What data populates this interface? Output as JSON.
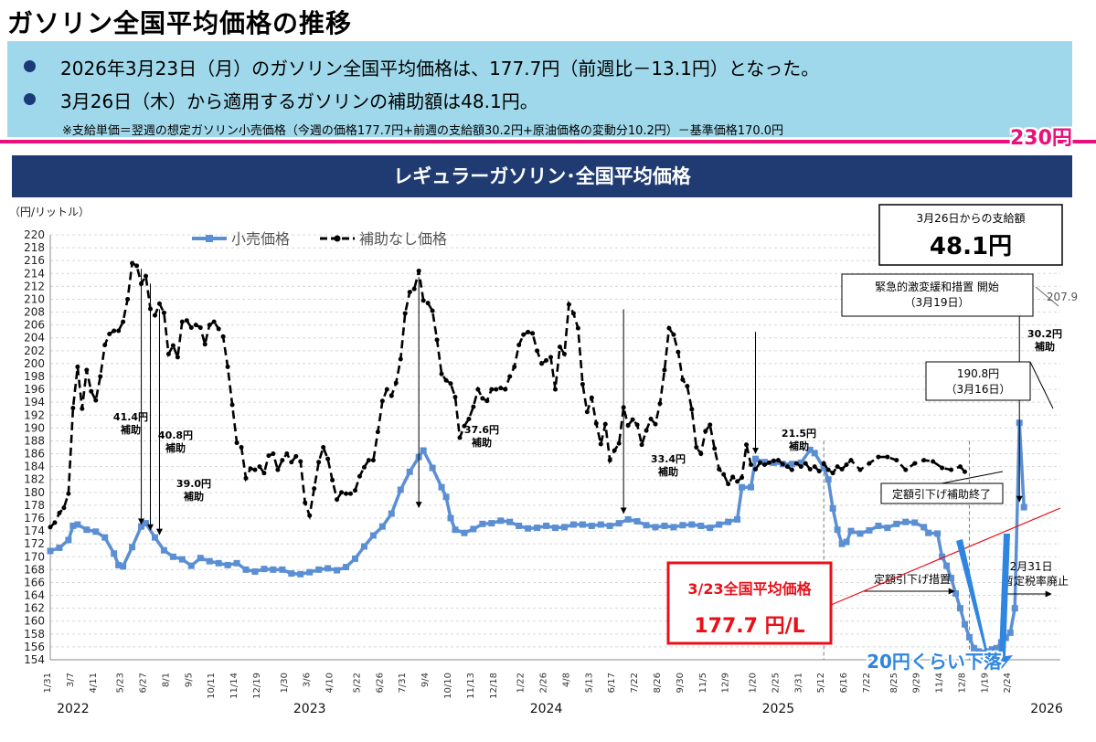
{
  "page": {
    "title": "ガソリン全国平均価格の推移",
    "bullets": [
      "2026年3月23日（月）のガソリン全国平均価格は、177.7円（前週比－13.1円）となった。",
      "3月26日（木）から適用するガソリンの補助額は48.1円。"
    ],
    "note": "※支給単価＝翌週の想定ガソリン小売価格（今週の価格177.7円+前週の支給額30.2円+原油価格の変動分10.2円）－基準価格170.0円",
    "line_label": "230円",
    "chart_header": "レギュラーガソリン･全国平均価格"
  },
  "colors": {
    "retail": "#5b8fd3",
    "nosubsidy": "#000000",
    "accent_red": "#e8101a",
    "pink": "#e8107a",
    "header_bg": "#1f3b72",
    "box_bg": "#9fd8ea",
    "bullet": "#1a3a7a"
  },
  "chart_data": {
    "type": "line",
    "ylabel": "（円/リットル）",
    "ylim": [
      154,
      220
    ],
    "yticks": [
      154,
      156,
      158,
      160,
      162,
      164,
      166,
      168,
      170,
      172,
      174,
      176,
      178,
      180,
      182,
      184,
      186,
      188,
      190,
      192,
      194,
      196,
      198,
      200,
      202,
      204,
      206,
      208,
      210,
      212,
      214,
      216,
      218,
      220
    ],
    "xlim": [
      0,
      222
    ],
    "x_tick_labels": [
      {
        "w": 0,
        "t": "1/31"
      },
      {
        "w": 5,
        "t": "3/7"
      },
      {
        "w": 10,
        "t": "4/11"
      },
      {
        "w": 16,
        "t": "5/23"
      },
      {
        "w": 21,
        "t": "6/27"
      },
      {
        "w": 26,
        "t": "8/1"
      },
      {
        "w": 31,
        "t": "9/5"
      },
      {
        "w": 36,
        "t": "10/11"
      },
      {
        "w": 41,
        "t": "11/14"
      },
      {
        "w": 46,
        "t": "12/19"
      },
      {
        "w": 52,
        "t": "1/30"
      },
      {
        "w": 57,
        "t": "3/6"
      },
      {
        "w": 62,
        "t": "4/10"
      },
      {
        "w": 68,
        "t": "5/22"
      },
      {
        "w": 73,
        "t": "6/26"
      },
      {
        "w": 78,
        "t": "7/31"
      },
      {
        "w": 83,
        "t": "9/4"
      },
      {
        "w": 88,
        "t": "10/10"
      },
      {
        "w": 93,
        "t": "11/13"
      },
      {
        "w": 98,
        "t": "12/18"
      },
      {
        "w": 104,
        "t": "1/22"
      },
      {
        "w": 109,
        "t": "2/26"
      },
      {
        "w": 114,
        "t": "4/8"
      },
      {
        "w": 119,
        "t": "5/13"
      },
      {
        "w": 124,
        "t": "6/17"
      },
      {
        "w": 129,
        "t": "7/22"
      },
      {
        "w": 134,
        "t": "8/26"
      },
      {
        "w": 139,
        "t": "9/30"
      },
      {
        "w": 144,
        "t": "11/5"
      },
      {
        "w": 149,
        "t": "12/9"
      },
      {
        "w": 155,
        "t": "1/20"
      },
      {
        "w": 160,
        "t": "2/25"
      },
      {
        "w": 165,
        "t": "3/31"
      },
      {
        "w": 170,
        "t": "5/12"
      },
      {
        "w": 175,
        "t": "6/16"
      },
      {
        "w": 180,
        "t": "7/22"
      },
      {
        "w": 186,
        "t": "8/25"
      },
      {
        "w": 191,
        "t": "9/29"
      },
      {
        "w": 196,
        "t": "11/4"
      },
      {
        "w": 201,
        "t": "12/8"
      },
      {
        "w": 206,
        "t": "1/19"
      },
      {
        "w": 211,
        "t": "2/24"
      }
    ],
    "year_labels": [
      {
        "w": 5,
        "t": "2022"
      },
      {
        "w": 57,
        "t": "2023"
      },
      {
        "w": 109,
        "t": "2024"
      },
      {
        "w": 160,
        "t": "2025"
      },
      {
        "w": 219,
        "t": "2026"
      }
    ],
    "legend": [
      {
        "key": "retail",
        "label": "小売価格"
      },
      {
        "key": "nosubsidy",
        "label": "補助なし価格"
      }
    ],
    "series_retail": [
      [
        0,
        170.9
      ],
      [
        2,
        171.4
      ],
      [
        4,
        172.6
      ],
      [
        5,
        174.8
      ],
      [
        6,
        175.0
      ],
      [
        8,
        174.2
      ],
      [
        10,
        173.9
      ],
      [
        12,
        173.0
      ],
      [
        14,
        170.5
      ],
      [
        15,
        168.7
      ],
      [
        16,
        168.5
      ],
      [
        18,
        171.5
      ],
      [
        20,
        174.7
      ],
      [
        21,
        175.2
      ],
      [
        23,
        173.0
      ],
      [
        25,
        171.0
      ],
      [
        27,
        170.0
      ],
      [
        29,
        169.6
      ],
      [
        31,
        168.6
      ],
      [
        33,
        169.8
      ],
      [
        35,
        169.3
      ],
      [
        37,
        169.0
      ],
      [
        39,
        168.7
      ],
      [
        41,
        169.0
      ],
      [
        43,
        168.0
      ],
      [
        45,
        167.7
      ],
      [
        47,
        168.1
      ],
      [
        49,
        168.0
      ],
      [
        51,
        168.0
      ],
      [
        53,
        167.4
      ],
      [
        55,
        167.3
      ],
      [
        57,
        167.6
      ],
      [
        59,
        168.0
      ],
      [
        61,
        168.2
      ],
      [
        63,
        167.9
      ],
      [
        65,
        168.4
      ],
      [
        67,
        169.7
      ],
      [
        69,
        171.6
      ],
      [
        71,
        173.3
      ],
      [
        73,
        174.7
      ],
      [
        75,
        176.7
      ],
      [
        77,
        180.4
      ],
      [
        79,
        183.2
      ],
      [
        81,
        185.5
      ],
      [
        82,
        186.5
      ],
      [
        84,
        183.8
      ],
      [
        86,
        180.8
      ],
      [
        87,
        179.3
      ],
      [
        88,
        176.0
      ],
      [
        89,
        174.2
      ],
      [
        91,
        173.7
      ],
      [
        93,
        174.3
      ],
      [
        95,
        175.1
      ],
      [
        97,
        175.2
      ],
      [
        99,
        175.6
      ],
      [
        101,
        175.4
      ],
      [
        103,
        174.8
      ],
      [
        105,
        174.4
      ],
      [
        107,
        174.5
      ],
      [
        109,
        174.8
      ],
      [
        111,
        174.5
      ],
      [
        113,
        174.6
      ],
      [
        115,
        175.0
      ],
      [
        117,
        175.0
      ],
      [
        119,
        174.8
      ],
      [
        121,
        175.0
      ],
      [
        123,
        174.8
      ],
      [
        125,
        175.2
      ],
      [
        127,
        175.8
      ],
      [
        129,
        175.5
      ],
      [
        131,
        174.9
      ],
      [
        133,
        174.6
      ],
      [
        135,
        174.8
      ],
      [
        137,
        174.6
      ],
      [
        139,
        174.9
      ],
      [
        141,
        175.0
      ],
      [
        143,
        174.8
      ],
      [
        145,
        174.5
      ],
      [
        147,
        175.0
      ],
      [
        149,
        175.4
      ],
      [
        151,
        175.8
      ],
      [
        152,
        180.8
      ],
      [
        154,
        180.8
      ],
      [
        155,
        185.2
      ],
      [
        157,
        184.7
      ],
      [
        159,
        184.6
      ],
      [
        161,
        184.4
      ],
      [
        163,
        184.4
      ],
      [
        165,
        184.6
      ],
      [
        167,
        186.6
      ],
      [
        168,
        186.1
      ],
      [
        170,
        183.8
      ],
      [
        171,
        182.0
      ],
      [
        172,
        177.5
      ],
      [
        173,
        174.2
      ],
      [
        174,
        172.0
      ],
      [
        175,
        172.3
      ],
      [
        176,
        174.0
      ],
      [
        178,
        173.6
      ],
      [
        180,
        174.1
      ],
      [
        182,
        174.8
      ],
      [
        184,
        174.5
      ],
      [
        186,
        175.1
      ],
      [
        188,
        175.4
      ],
      [
        190,
        175.3
      ],
      [
        192,
        174.6
      ],
      [
        193,
        173.7
      ],
      [
        195,
        173.6
      ],
      [
        196,
        170.0
      ],
      [
        197,
        168.6
      ],
      [
        198,
        166.7
      ],
      [
        199,
        164.3
      ],
      [
        200,
        162.0
      ],
      [
        201,
        159.5
      ],
      [
        202,
        157.5
      ],
      [
        203,
        155.8
      ],
      [
        204,
        155.3
      ],
      [
        205,
        155.1
      ],
      [
        206,
        155.3
      ],
      [
        207,
        155.6
      ],
      [
        208,
        155.8
      ],
      [
        209,
        156.7
      ],
      [
        210,
        157.4
      ],
      [
        211,
        158.2
      ],
      [
        212,
        162.0
      ],
      [
        213,
        190.8
      ],
      [
        214,
        177.7
      ]
    ],
    "series_nosubsidy": [
      [
        0,
        174.6
      ],
      [
        1,
        175.3
      ],
      [
        2,
        176.8
      ],
      [
        3,
        177.6
      ],
      [
        4,
        179.8
      ],
      [
        5,
        193.1
      ],
      [
        6,
        199.5
      ],
      [
        7,
        193.0
      ],
      [
        8,
        199.0
      ],
      [
        9,
        195.7
      ],
      [
        10,
        194.3
      ],
      [
        11,
        198.0
      ],
      [
        12,
        202.9
      ],
      [
        13,
        204.6
      ],
      [
        14,
        205.1
      ],
      [
        15,
        205.1
      ],
      [
        16,
        206.5
      ],
      [
        17,
        210.0
      ],
      [
        18,
        215.6
      ],
      [
        19,
        215.2
      ],
      [
        20,
        212.4
      ],
      [
        21,
        213.6
      ],
      [
        22,
        208.5
      ],
      [
        23,
        207.5
      ],
      [
        24,
        209.3
      ],
      [
        25,
        207.9
      ],
      [
        26,
        201.5
      ],
      [
        27,
        202.8
      ],
      [
        28,
        201.0
      ],
      [
        29,
        206.5
      ],
      [
        30,
        206.7
      ],
      [
        31,
        205.6
      ],
      [
        32,
        206.0
      ],
      [
        33,
        205.6
      ],
      [
        34,
        203.0
      ],
      [
        35,
        206.0
      ],
      [
        36,
        206.5
      ],
      [
        37,
        205.4
      ],
      [
        38,
        204.2
      ],
      [
        39,
        199.5
      ],
      [
        40,
        193.6
      ],
      [
        41,
        187.7
      ],
      [
        42,
        187.0
      ],
      [
        43,
        182.2
      ],
      [
        44,
        183.7
      ],
      [
        45,
        183.5
      ],
      [
        46,
        184.0
      ],
      [
        47,
        183.0
      ],
      [
        48,
        185.7
      ],
      [
        49,
        186.0
      ],
      [
        50,
        183.5
      ],
      [
        51,
        185.0
      ],
      [
        52,
        186.0
      ],
      [
        53,
        184.7
      ],
      [
        54,
        185.6
      ],
      [
        55,
        184.8
      ],
      [
        56,
        178.4
      ],
      [
        57,
        176.4
      ],
      [
        58,
        180.6
      ],
      [
        59,
        184.7
      ],
      [
        60,
        187.0
      ],
      [
        61,
        185.2
      ],
      [
        62,
        181.9
      ],
      [
        63,
        178.9
      ],
      [
        64,
        180.0
      ],
      [
        65,
        179.8
      ],
      [
        66,
        179.8
      ],
      [
        67,
        180.3
      ],
      [
        68,
        182.5
      ],
      [
        69,
        183.9
      ],
      [
        70,
        185.0
      ],
      [
        71,
        185.0
      ],
      [
        72,
        189.4
      ],
      [
        73,
        194.2
      ],
      [
        74,
        196.0
      ],
      [
        75,
        195.0
      ],
      [
        76,
        197.0
      ],
      [
        77,
        200.7
      ],
      [
        78,
        207.8
      ],
      [
        79,
        211.1
      ],
      [
        80,
        211.6
      ],
      [
        81,
        214.4
      ],
      [
        82,
        209.8
      ],
      [
        83,
        209.4
      ],
      [
        84,
        208.2
      ],
      [
        85,
        203.7
      ],
      [
        86,
        198.4
      ],
      [
        87,
        197.4
      ],
      [
        88,
        196.9
      ],
      [
        89,
        194.8
      ],
      [
        90,
        188.5
      ],
      [
        91,
        190.3
      ],
      [
        92,
        191.4
      ],
      [
        93,
        193.3
      ],
      [
        94,
        196.0
      ],
      [
        95,
        194.6
      ],
      [
        96,
        194.2
      ],
      [
        97,
        196.0
      ],
      [
        98,
        196.0
      ],
      [
        99,
        196.2
      ],
      [
        100,
        196.0
      ],
      [
        101,
        198.0
      ],
      [
        102,
        199.5
      ],
      [
        103,
        202.9
      ],
      [
        104,
        204.5
      ],
      [
        105,
        204.9
      ],
      [
        106,
        204.7
      ],
      [
        107,
        202.0
      ],
      [
        108,
        200.0
      ],
      [
        109,
        200.5
      ],
      [
        110,
        201.0
      ],
      [
        111,
        196.0
      ],
      [
        112,
        202.6
      ],
      [
        113,
        201.5
      ],
      [
        114,
        209.2
      ],
      [
        115,
        207.8
      ],
      [
        116,
        205.5
      ],
      [
        117,
        196.8
      ],
      [
        118,
        192.5
      ],
      [
        119,
        194.7
      ],
      [
        120,
        190.7
      ],
      [
        121,
        187.5
      ],
      [
        122,
        190.6
      ],
      [
        123,
        185.0
      ],
      [
        124,
        186.5
      ],
      [
        125,
        187.6
      ],
      [
        126,
        193.2
      ],
      [
        127,
        190.4
      ],
      [
        128,
        191.3
      ],
      [
        129,
        190.5
      ],
      [
        130,
        187.4
      ],
      [
        131,
        189.6
      ],
      [
        132,
        191.4
      ],
      [
        133,
        190.6
      ],
      [
        134,
        193.8
      ],
      [
        135,
        199.0
      ],
      [
        136,
        205.5
      ],
      [
        137,
        204.5
      ],
      [
        138,
        201.8
      ],
      [
        139,
        197.5
      ],
      [
        140,
        196.5
      ],
      [
        141,
        192.9
      ],
      [
        142,
        187.0
      ],
      [
        143,
        186.0
      ],
      [
        144,
        189.5
      ],
      [
        145,
        190.5
      ],
      [
        146,
        186.8
      ],
      [
        147,
        183.6
      ],
      [
        148,
        182.8
      ],
      [
        149,
        181.3
      ],
      [
        150,
        182.4
      ],
      [
        151,
        181.7
      ],
      [
        152,
        182.3
      ],
      [
        153,
        187.4
      ],
      [
        154,
        184.3
      ],
      [
        155,
        183.6
      ],
      [
        156,
        184.6
      ],
      [
        157,
        184.3
      ],
      [
        158,
        184.6
      ],
      [
        159,
        184.9
      ],
      [
        160,
        185.0
      ],
      [
        161,
        184.4
      ],
      [
        162,
        184.0
      ],
      [
        163,
        183.5
      ],
      [
        164,
        184.5
      ],
      [
        165,
        184.0
      ],
      [
        166,
        184.5
      ],
      [
        167,
        183.6
      ],
      [
        168,
        184.0
      ],
      [
        169,
        183.3
      ],
      [
        170,
        184.5
      ],
      [
        171,
        183.5
      ],
      [
        172,
        183.0
      ],
      [
        173,
        184.0
      ],
      [
        174,
        183.6
      ],
      [
        175,
        184.3
      ],
      [
        176,
        185.0
      ],
      [
        178,
        183.5
      ],
      [
        180,
        184.5
      ],
      [
        182,
        185.5
      ],
      [
        184,
        185.5
      ],
      [
        186,
        185.0
      ],
      [
        188,
        183.5
      ],
      [
        190,
        184.5
      ],
      [
        192,
        185.0
      ],
      [
        194,
        184.8
      ],
      [
        196,
        183.8
      ],
      [
        198,
        183.5
      ],
      [
        200,
        184.0
      ],
      [
        201,
        183.2
      ],
      [
        213,
        207.9
      ]
    ],
    "nosubsidy_gaps": [
      [
        201,
        213
      ]
    ],
    "vertical_dashed_lines": [
      170,
      202
    ],
    "subsidy_arrows": [
      {
        "x": 20,
        "from": 215.3,
        "to": 174.2
      },
      {
        "x": 22,
        "from": 213.0,
        "to": 173.3
      },
      {
        "x": 24,
        "from": 209.0,
        "to": 172.6
      },
      {
        "x": 81,
        "from": 214.0,
        "to": 176.8
      },
      {
        "x": 126,
        "from": 209.0,
        "to": 175.9
      },
      {
        "x": 155,
        "from": 205.5,
        "to": 185.2
      },
      {
        "x": 213,
        "from": 207.9,
        "to": 177.7
      }
    ],
    "annotations": {
      "a1": "41.4円\n補助",
      "a2": "40.8円\n補助",
      "a3": "39.0円\n補助",
      "a4": "37.6円\n補助",
      "a5": "33.4円\n補助",
      "a6": "21.5円\n補助",
      "a7": "30.2円\n補助",
      "label_207": "207.9",
      "box_payment_title": "3月26日からの支給額",
      "box_payment_value": "48.1円",
      "box_emergency": "緊急的激変緩和措置 開始\n（3月19日）",
      "box_190": "190.8円\n（3月16日）",
      "box_end": "定額引下げ補助終了",
      "label_teigaku": "定額引下げ措置",
      "label_1231": "12月31日\n暫定税率廃止",
      "box_current_title": "3/23全国平均価格",
      "box_current_value": "177.7 円/L",
      "label_drop": "20円くらい下落"
    }
  }
}
